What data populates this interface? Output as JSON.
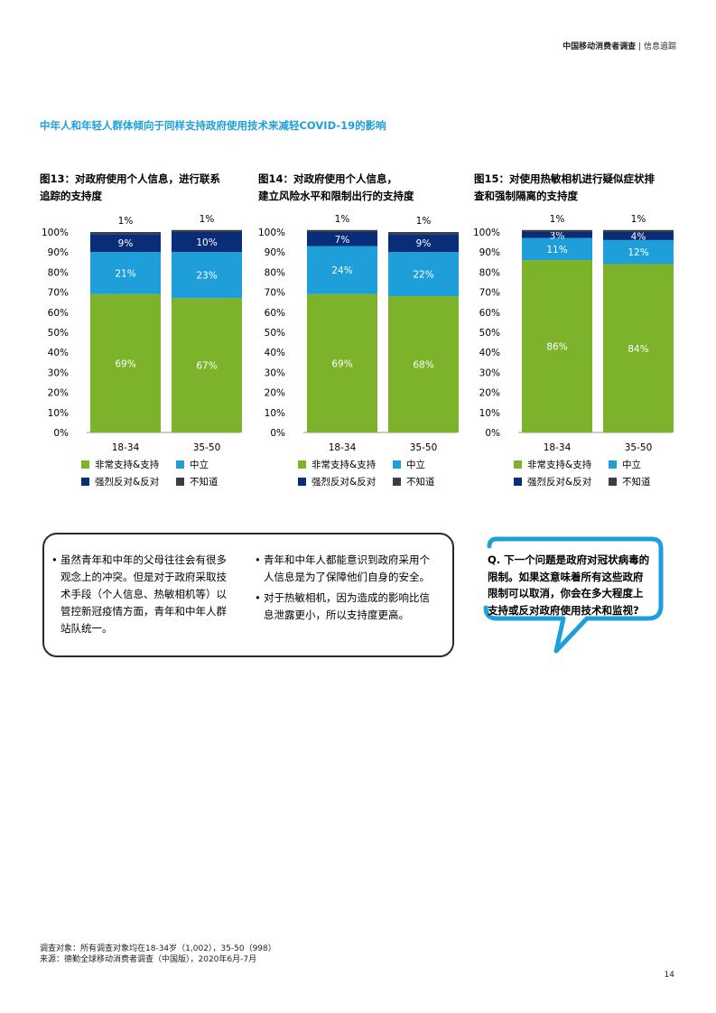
{
  "header": {
    "title_bold": "中国移动消费者调查",
    "separator": "|",
    "subtitle": "信息追踪"
  },
  "section_title": "中年人和年轻人群体倾向于同样支持政府使用技术来减轻COVID-19的影响",
  "figures": [
    {
      "title_line1": "图13：对政府使用个人信息，进行联系",
      "title_line2": "追踪的支持度"
    },
    {
      "title_line1": "图14：对政府使用个人信息，",
      "title_line2": "建立风险水平和限制出行的支持度"
    },
    {
      "title_line1": "图15：对使用热敏相机进行疑似症状排",
      "title_line2": "查和强制隔离的支持度"
    }
  ],
  "legend": {
    "items": [
      {
        "label": "非常支持&支持",
        "color": "#7cb32a"
      },
      {
        "label": "中立",
        "color": "#1f9fd9"
      },
      {
        "label": "强烈反对&反对",
        "color": "#0a2d7a"
      },
      {
        "label": "不知道",
        "color": "#3a3d44"
      }
    ]
  },
  "chart_data": [
    {
      "type": "bar",
      "stacked": true,
      "categories": [
        "18-34",
        "35-50"
      ],
      "y_ticks": [
        "0%",
        "10%",
        "20%",
        "30%",
        "40%",
        "50%",
        "60%",
        "70%",
        "80%",
        "90%",
        "100%"
      ],
      "ylim": [
        0,
        100
      ],
      "series": [
        {
          "name": "非常支持&支持",
          "values": [
            69,
            67
          ],
          "labels": [
            "69%",
            "67%"
          ]
        },
        {
          "name": "中立",
          "values": [
            21,
            23
          ],
          "labels": [
            "21%",
            "23%"
          ]
        },
        {
          "name": "强烈反对&反对",
          "values": [
            9,
            10
          ],
          "labels": [
            "9%",
            "10%"
          ]
        },
        {
          "name": "不知道",
          "values": [
            1,
            1
          ],
          "labels": [
            "1%",
            "1%"
          ]
        }
      ]
    },
    {
      "type": "bar",
      "stacked": true,
      "categories": [
        "18-34",
        "35-50"
      ],
      "y_ticks": [
        "0%",
        "10%",
        "20%",
        "30%",
        "40%",
        "50%",
        "60%",
        "70%",
        "80%",
        "90%",
        "100%"
      ],
      "ylim": [
        0,
        100
      ],
      "series": [
        {
          "name": "非常支持&支持",
          "values": [
            69,
            68
          ],
          "labels": [
            "69%",
            "68%"
          ]
        },
        {
          "name": "中立",
          "values": [
            24,
            22
          ],
          "labels": [
            "24%",
            "22%"
          ]
        },
        {
          "name": "强烈反对&反对",
          "values": [
            7,
            9
          ],
          "labels": [
            "7%",
            "9%"
          ]
        },
        {
          "name": "不知道",
          "values": [
            1,
            1
          ],
          "labels": [
            "1%",
            "1%"
          ]
        }
      ]
    },
    {
      "type": "bar",
      "stacked": true,
      "categories": [
        "18-34",
        "35-50"
      ],
      "y_ticks": [
        "0%",
        "10%",
        "20%",
        "30%",
        "40%",
        "50%",
        "60%",
        "70%",
        "80%",
        "90%",
        "100%"
      ],
      "ylim": [
        0,
        100
      ],
      "series": [
        {
          "name": "非常支持&支持",
          "values": [
            86,
            84
          ],
          "labels": [
            "86%",
            "84%"
          ]
        },
        {
          "name": "中立",
          "values": [
            11,
            12
          ],
          "labels": [
            "11%",
            "12%"
          ]
        },
        {
          "name": "强烈反对&反对",
          "values": [
            3,
            4
          ],
          "labels": [
            "3%",
            "4%"
          ]
        },
        {
          "name": "不知道",
          "values": [
            1,
            1
          ],
          "labels": [
            "1%",
            "1%"
          ]
        }
      ]
    }
  ],
  "notes_left": {
    "lines": [
      "虽然青年和中年的父母往往会有很多",
      "观念上的冲突。但是对于政府采取技",
      "术手段（个人信息、热敏相机等）以",
      "管控新冠疫情方面，青年和中年人群",
      "站队统一。"
    ]
  },
  "notes_right": [
    {
      "lines": [
        "青年和中年人都能意识到政府采用个",
        "人信息是为了保障他们自身的安全。"
      ]
    },
    {
      "lines": [
        "对于热敏相机，因为造成的影响比信",
        "息泄露更小，所以支持度更高。"
      ]
    }
  ],
  "question": {
    "lines": [
      "Q. 下一个问题是政府对冠状病毒的",
      "限制。如果这意味着所有这些政府",
      "限制可以取消，你会在多大程度上",
      "支持或反对政府使用技术和监视?"
    ]
  },
  "footnote": {
    "line1": "调查对象：所有调查对象均在18-34岁（1,002），35-50（998）",
    "line2": "来源：德勤全球移动消费者调查（中国版），2020年6月-7月"
  },
  "page_number": "14"
}
